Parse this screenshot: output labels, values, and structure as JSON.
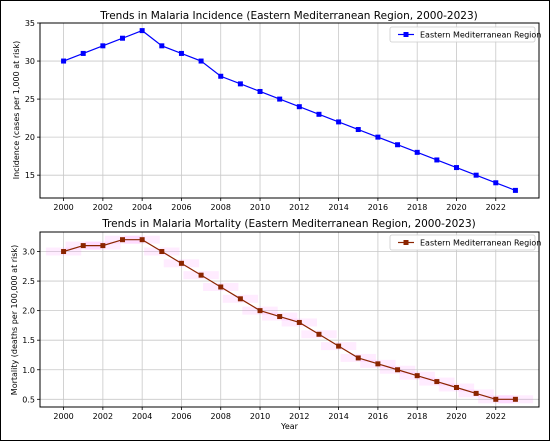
{
  "chart_data": [
    {
      "type": "line",
      "title": "Trends in Malaria Incidence (Eastern Mediterranean Region, 2000-2023)",
      "xlabel": "",
      "ylabel": "Incidence (cases per 1,000 at risk)",
      "xlim": [
        1998.8,
        2024.2
      ],
      "ylim": [
        12.0,
        35.0
      ],
      "xticks": [
        "2000",
        "2002",
        "2004",
        "2006",
        "2008",
        "2010",
        "2012",
        "2014",
        "2016",
        "2018",
        "2020",
        "2022"
      ],
      "xtick_values": [
        2000,
        2002,
        2004,
        2006,
        2008,
        2010,
        2012,
        2014,
        2016,
        2018,
        2020,
        2022
      ],
      "yticks": [
        "15",
        "20",
        "25",
        "30",
        "35"
      ],
      "ytick_values": [
        15,
        20,
        25,
        30,
        35
      ],
      "grid": true,
      "legend_position": "top-right",
      "color": "#0000ff",
      "marker": "square",
      "series": [
        {
          "name": "Eastern Mediterranean Region",
          "x": [
            2000,
            2001,
            2002,
            2003,
            2004,
            2005,
            2006,
            2007,
            2008,
            2009,
            2010,
            2011,
            2012,
            2013,
            2014,
            2015,
            2016,
            2017,
            2018,
            2019,
            2020,
            2021,
            2022,
            2023
          ],
          "y": [
            30,
            31,
            32,
            33,
            34,
            32,
            31,
            30,
            28,
            27,
            26,
            25,
            24,
            23,
            22,
            21,
            20,
            19,
            18,
            17,
            16,
            15,
            14,
            13
          ]
        }
      ]
    },
    {
      "type": "line",
      "title": "Trends in Malaria Mortality (Eastern Mediterranean Region, 2000-2023)",
      "xlabel": "Year",
      "ylabel": "Mortality (deaths per 100,000 at risk)",
      "xlim": [
        1998.8,
        2024.2
      ],
      "ylim": [
        0.37,
        3.33
      ],
      "xticks": [
        "2000",
        "2002",
        "2004",
        "2006",
        "2008",
        "2010",
        "2012",
        "2014",
        "2016",
        "2018",
        "2020",
        "2022"
      ],
      "xtick_values": [
        2000,
        2002,
        2004,
        2006,
        2008,
        2010,
        2012,
        2014,
        2016,
        2018,
        2020,
        2022
      ],
      "yticks": [
        "0.5",
        "1.0",
        "1.5",
        "2.0",
        "2.5",
        "3.0"
      ],
      "ytick_values": [
        0.5,
        1.0,
        1.5,
        2.0,
        2.5,
        3.0
      ],
      "grid": true,
      "legend_position": "top-right",
      "color": "#8b2500",
      "marker": "square",
      "band_color": "#ff66ff",
      "series": [
        {
          "name": "Eastern Mediterranean Region",
          "x": [
            2000,
            2001,
            2002,
            2003,
            2004,
            2005,
            2006,
            2007,
            2008,
            2009,
            2010,
            2011,
            2012,
            2013,
            2014,
            2015,
            2016,
            2017,
            2018,
            2019,
            2020,
            2021,
            2022,
            2023
          ],
          "y": [
            3.0,
            3.1,
            3.1,
            3.2,
            3.2,
            3.0,
            2.8,
            2.6,
            2.4,
            2.2,
            2.0,
            1.9,
            1.8,
            1.6,
            1.4,
            1.2,
            1.1,
            1.0,
            0.9,
            0.8,
            0.7,
            0.6,
            0.5,
            0.5
          ]
        }
      ]
    }
  ]
}
